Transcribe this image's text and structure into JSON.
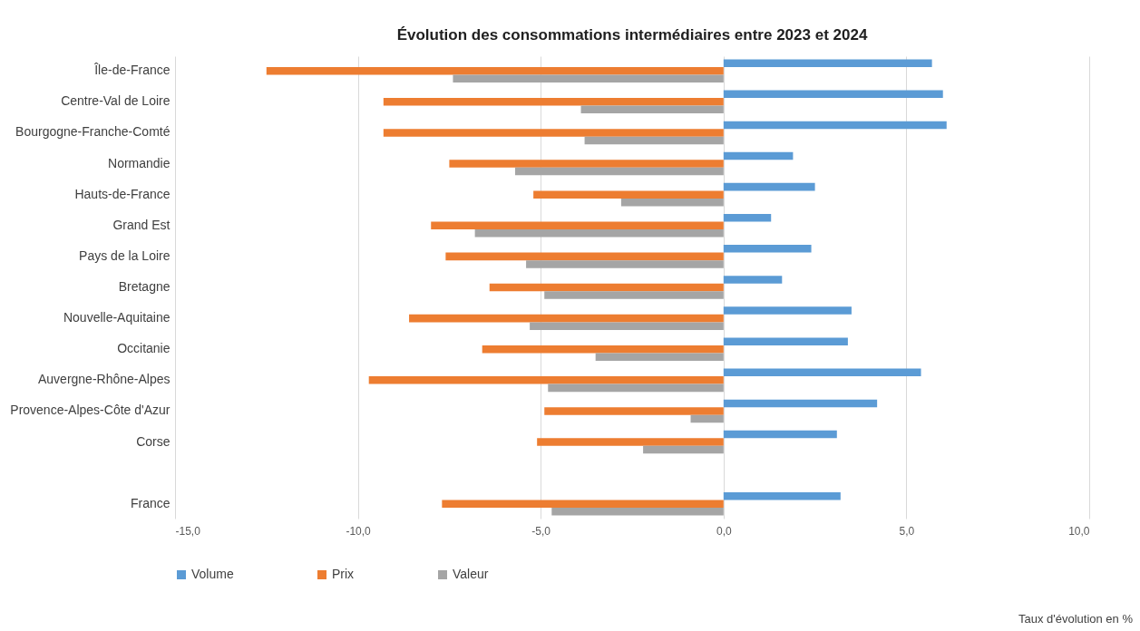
{
  "chart_data": {
    "type": "bar",
    "orientation": "horizontal",
    "title": "Évolution des consommations intermédiaires entre 2023 et 2024",
    "categories": [
      "Île-de-France",
      "Centre-Val de Loire",
      "Bourgogne-Franche-Comté",
      "Normandie",
      "Hauts-de-France",
      "Grand Est",
      "Pays de la Loire",
      "Bretagne",
      "Nouvelle-Aquitaine",
      "Occitanie",
      "Auvergne-Rhône-Alpes",
      "Provence-Alpes-Côte d'Azur",
      "Corse",
      null,
      "France"
    ],
    "series": [
      {
        "name": "Volume",
        "color": "#5b9bd5",
        "values": [
          5.7,
          6.0,
          6.1,
          1.9,
          2.5,
          1.3,
          2.4,
          1.6,
          3.5,
          3.4,
          5.4,
          4.2,
          3.1,
          null,
          3.2
        ]
      },
      {
        "name": "Prix",
        "color": "#ed7d31",
        "values": [
          -12.5,
          -9.3,
          -9.3,
          -7.5,
          -5.2,
          -8.0,
          -7.6,
          -6.4,
          -8.6,
          -6.6,
          -9.7,
          -4.9,
          -5.1,
          null,
          -7.7
        ]
      },
      {
        "name": "Valeur",
        "color": "#a5a5a5",
        "values": [
          -7.4,
          -3.9,
          -3.8,
          -5.7,
          -2.8,
          -6.8,
          -5.4,
          -4.9,
          -5.3,
          -3.5,
          -4.8,
          -0.9,
          -2.2,
          null,
          -4.7
        ]
      }
    ],
    "xlim": [
      -15,
      10
    ],
    "xticks": [
      {
        "value": -15,
        "label": "-15,0"
      },
      {
        "value": -10,
        "label": "-10,0"
      },
      {
        "value": -5,
        "label": "-5,0"
      },
      {
        "value": 0,
        "label": "0,0"
      },
      {
        "value": 5,
        "label": "5,0"
      },
      {
        "value": 10,
        "label": "10,0"
      }
    ],
    "grid": "x",
    "legend": "bottom",
    "annotations": [
      "Taux d'évolution en %"
    ]
  }
}
